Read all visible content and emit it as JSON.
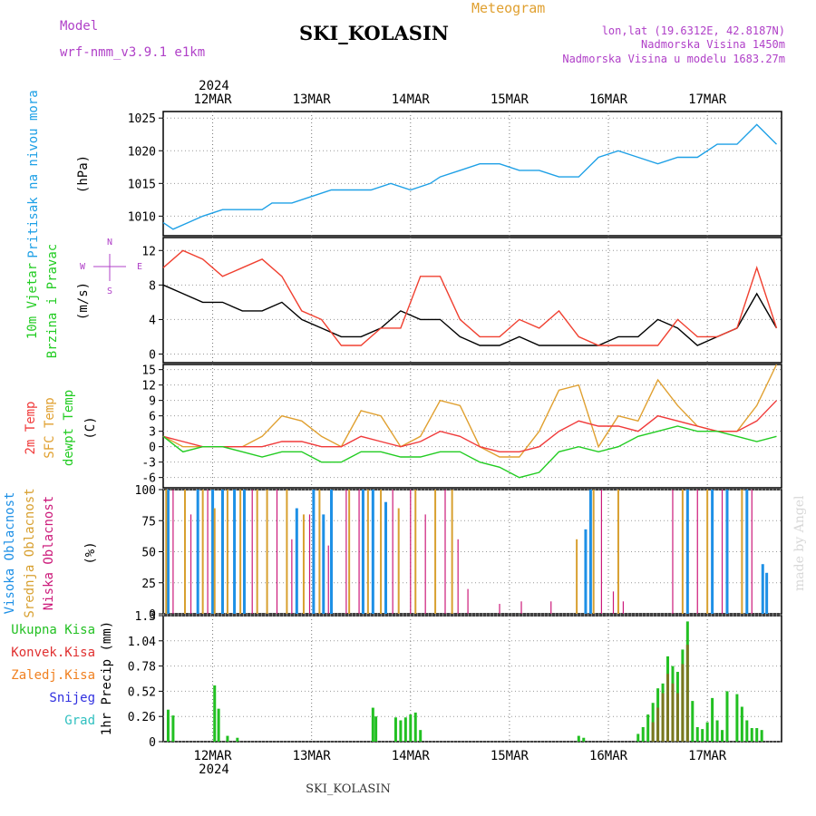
{
  "header": {
    "model_label": "Model",
    "model_name": "wrf-nmm_v3.9.1 e1km",
    "station": "SKI_KOLASIN",
    "product": "Meteogram",
    "lonlat": "lon,lat (19.6312E, 42.8187N)",
    "elevation": "Nadmorska Visina 1450m",
    "model_elevation": "Nadmorska Visina u modelu 1683.27m",
    "year_top": "2024",
    "year_bottom": "2024",
    "footer_station": "SKI_KOLASIN",
    "watermark": "made by Angel"
  },
  "dates": [
    "12MAR",
    "13MAR",
    "14MAR",
    "15MAR",
    "16MAR",
    "17MAR"
  ],
  "panel_labels": {
    "pressure": {
      "lines": [
        "Pritisak na nivou mora"
      ],
      "unit": "(hPa)"
    },
    "wind": {
      "lines": [
        "10m Vjetar",
        "Brzina i Pravac"
      ],
      "unit": "(m/s)",
      "compass": [
        "N",
        "W",
        "E",
        "S"
      ]
    },
    "temp": {
      "lines": [
        "2m Temp",
        "SFC Temp",
        "dewpt Temp"
      ],
      "unit": "(C)"
    },
    "cloud": {
      "lines": [
        "Visoka Oblacnost",
        "Srednja Oblacnost",
        "Niska Oblacnost"
      ],
      "unit": "(%)"
    },
    "precip": {
      "lines": [
        "Ukupna Kisa",
        "Konvek.Kisa",
        "Zaledj.Kisa",
        "Snijeg",
        "Grad"
      ],
      "unit": "1hr Precip (mm)"
    }
  },
  "colors": {
    "pressure": "#1ea0e6",
    "wind_speed": "#000000",
    "wind_gust": "#f04030",
    "temp_2m": "#f03a3a",
    "temp_sfc": "#e0a030",
    "temp_dewpt": "#22cc22",
    "cloud_high": "#1e90e6",
    "cloud_mid": "#d8a030",
    "cloud_low": "#cc1a7a",
    "precip_total": "#22c022",
    "precip_conv": "#e03030",
    "precip_frz": "#f08020",
    "precip_snow": "#3030e0",
    "precip_grad": "#30c0c0",
    "label_pressure": "#1ea0e6",
    "label_wind": "#22cc22",
    "label_purple": "#b040c8"
  },
  "chart_data": [
    {
      "type": "line",
      "name": "pressure",
      "x_unit": "days from 2024-03-11 12UTC",
      "ylabel": "(hPa)",
      "ylim": [
        1007,
        1026
      ],
      "yticks": [
        1010,
        1015,
        1020,
        1025
      ],
      "series": [
        {
          "x": [
            0,
            0.1,
            0.25,
            0.4,
            0.6,
            0.8,
            1.0,
            1.1,
            1.3,
            1.5,
            1.7,
            1.9,
            2.1,
            2.3,
            2.5,
            2.7,
            2.8,
            3.0,
            3.2,
            3.4,
            3.6,
            3.8,
            4.0,
            4.2,
            4.4,
            4.6,
            4.8,
            5.0,
            5.2,
            5.4,
            5.6,
            5.8,
            6.0,
            6.1,
            6.2
          ],
          "values": [
            1009,
            1008,
            1009,
            1010,
            1011,
            1011,
            1011,
            1012,
            1012,
            1013,
            1014,
            1014,
            1014,
            1015,
            1014,
            1015,
            1016,
            1017,
            1018,
            1018,
            1017,
            1017,
            1016,
            1016,
            1019,
            1020,
            1019,
            1018,
            1019,
            1019,
            1021,
            1021,
            1024,
            1022.5,
            1021
          ]
        }
      ]
    },
    {
      "type": "line",
      "name": "wind",
      "ylabel": "(m/s)",
      "ylim": [
        -1,
        13.5
      ],
      "yticks": [
        0,
        4,
        8,
        12
      ],
      "series": [
        {
          "x": [
            0,
            0.2,
            0.4,
            0.6,
            0.8,
            1.0,
            1.2,
            1.4,
            1.6,
            1.8,
            2.0,
            2.2,
            2.4,
            2.6,
            2.8,
            3.0,
            3.2,
            3.4,
            3.6,
            3.8,
            4.0,
            4.2,
            4.4,
            4.6,
            4.8,
            5.0,
            5.2,
            5.4,
            5.6,
            5.8,
            6.0,
            6.2
          ],
          "values": [
            8,
            7,
            6,
            6,
            5,
            5,
            6,
            4,
            3,
            2,
            2,
            3,
            5,
            4,
            4,
            2,
            1,
            1,
            2,
            1,
            1,
            1,
            1,
            2,
            2,
            4,
            3,
            1,
            2,
            3,
            7,
            3
          ]
        },
        {
          "x": [
            0,
            0.2,
            0.4,
            0.6,
            0.8,
            1.0,
            1.2,
            1.4,
            1.6,
            1.8,
            2.0,
            2.2,
            2.4,
            2.6,
            2.8,
            3.0,
            3.2,
            3.4,
            3.6,
            3.8,
            4.0,
            4.2,
            4.4,
            4.6,
            4.8,
            5.0,
            5.2,
            5.4,
            5.6,
            5.8,
            6.0,
            6.2
          ],
          "values": [
            10,
            12,
            11,
            9,
            10,
            11,
            9,
            5,
            4,
            1,
            1,
            3,
            3,
            9,
            9,
            4,
            2,
            2,
            4,
            3,
            5,
            2,
            1,
            1,
            1,
            1,
            4,
            2,
            2,
            3,
            10,
            3
          ]
        }
      ]
    },
    {
      "type": "line",
      "name": "temperature",
      "ylabel": "(C)",
      "ylim": [
        -8,
        16
      ],
      "yticks": [
        -6,
        -3,
        0,
        3,
        6,
        9,
        12,
        15
      ],
      "series": [
        {
          "x": [
            0,
            0.2,
            0.4,
            0.6,
            0.8,
            1.0,
            1.2,
            1.4,
            1.6,
            1.8,
            2.0,
            2.2,
            2.4,
            2.6,
            2.8,
            3.0,
            3.2,
            3.4,
            3.6,
            3.8,
            4.0,
            4.2,
            4.4,
            4.6,
            4.8,
            5.0,
            5.2,
            5.4,
            5.6,
            5.8,
            6.0,
            6.2
          ],
          "values": [
            2,
            1,
            0,
            0,
            0,
            0,
            1,
            1,
            0,
            0,
            2,
            1,
            0,
            1,
            3,
            2,
            0,
            -1,
            -1,
            0,
            3,
            5,
            4,
            4,
            3,
            6,
            5,
            4,
            3,
            3,
            5,
            9
          ]
        },
        {
          "x": [
            0,
            0.2,
            0.4,
            0.6,
            0.8,
            1.0,
            1.2,
            1.4,
            1.6,
            1.8,
            2.0,
            2.2,
            2.4,
            2.6,
            2.8,
            3.0,
            3.2,
            3.4,
            3.6,
            3.8,
            4.0,
            4.2,
            4.4,
            4.6,
            4.8,
            5.0,
            5.2,
            5.4,
            5.6,
            5.8,
            6.0,
            6.2
          ],
          "values": [
            2,
            0,
            0,
            0,
            0,
            2,
            6,
            5,
            2,
            0,
            7,
            6,
            0,
            2,
            9,
            8,
            0,
            -2,
            -2,
            3,
            11,
            12,
            0,
            6,
            5,
            13,
            8,
            4,
            3,
            3,
            8,
            16
          ]
        },
        {
          "x": [
            0,
            0.2,
            0.4,
            0.6,
            0.8,
            1.0,
            1.2,
            1.4,
            1.6,
            1.8,
            2.0,
            2.2,
            2.4,
            2.6,
            2.8,
            3.0,
            3.2,
            3.4,
            3.6,
            3.8,
            4.0,
            4.2,
            4.4,
            4.6,
            4.8,
            5.0,
            5.2,
            5.4,
            5.6,
            5.8,
            6.0,
            6.2
          ],
          "values": [
            2,
            -1,
            0,
            0,
            -1,
            -2,
            -1,
            -1,
            -3,
            -3,
            -1,
            -1,
            -2,
            -2,
            -1,
            -1,
            -3,
            -4,
            -6,
            -5,
            -1,
            0,
            -1,
            0,
            2,
            3,
            4,
            3,
            3,
            2,
            1,
            2
          ]
        }
      ]
    },
    {
      "type": "bar",
      "name": "cloud",
      "ylabel": "(%)",
      "ylim": [
        0,
        100
      ],
      "yticks": [
        0,
        25,
        50,
        75,
        100
      ],
      "series": [
        {
          "x": [
            0.05,
            0.35,
            0.5,
            0.6,
            0.72,
            0.82,
            1.35,
            1.52,
            1.62,
            1.7,
            2.02,
            2.12,
            2.25,
            4.27,
            4.32,
            5.3,
            5.55,
            5.7,
            5.9,
            6.06,
            6.1
          ],
          "values": [
            100,
            100,
            100,
            100,
            100,
            100,
            85,
            100,
            80,
            100,
            100,
            100,
            90,
            68,
            100,
            100,
            100,
            100,
            100,
            40,
            33
          ]
        },
        {
          "x": [
            0.03,
            0.22,
            0.4,
            0.52,
            0.65,
            0.78,
            0.95,
            1.05,
            1.25,
            1.42,
            1.58,
            1.88,
            2.07,
            2.2,
            2.38,
            2.55,
            2.75,
            2.92,
            4.18,
            4.35,
            4.6,
            5.25,
            5.5,
            5.85
          ],
          "values": [
            100,
            100,
            100,
            85,
            100,
            100,
            100,
            100,
            100,
            80,
            100,
            100,
            100,
            100,
            85,
            100,
            100,
            100,
            60,
            100,
            100,
            100,
            100,
            100
          ]
        },
        {
          "x": [
            0.1,
            0.28,
            0.45,
            0.9,
            1.15,
            1.3,
            1.48,
            1.67,
            1.85,
            1.98,
            2.32,
            2.5,
            2.65,
            2.85,
            2.98,
            3.08,
            3.4,
            3.62,
            3.92,
            4.43,
            4.55,
            4.65,
            5.15,
            5.4,
            5.65,
            5.95
          ],
          "values": [
            100,
            80,
            100,
            100,
            100,
            60,
            80,
            55,
            100,
            100,
            100,
            100,
            80,
            100,
            60,
            20,
            8,
            10,
            10,
            100,
            18,
            10,
            100,
            100,
            100,
            100
          ]
        }
      ]
    },
    {
      "type": "bar",
      "name": "precip",
      "ylabel": "1hr Precip (mm)",
      "ylim": [
        0,
        1.3
      ],
      "yticks": [
        0,
        0.26,
        0.52,
        0.78,
        1.04,
        1.3
      ],
      "series": [
        {
          "x": [
            0.05,
            0.1,
            0.52,
            0.56,
            0.65,
            0.75,
            2.12,
            2.15,
            2.35,
            2.4,
            2.45,
            2.5,
            2.55,
            2.6,
            4.2,
            4.25,
            4.8,
            4.85,
            4.9,
            4.95,
            5.0,
            5.05,
            5.1,
            5.15,
            5.2,
            5.25,
            5.3,
            5.35,
            5.4,
            5.45,
            5.5,
            5.55,
            5.6,
            5.65,
            5.7,
            5.8,
            5.85,
            5.9,
            5.95,
            6.0,
            6.05
          ],
          "values": [
            0.33,
            0.27,
            0.58,
            0.34,
            0.06,
            0.04,
            0.35,
            0.26,
            0.25,
            0.22,
            0.25,
            0.28,
            0.3,
            0.12,
            0.06,
            0.04,
            0.08,
            0.15,
            0.28,
            0.4,
            0.55,
            0.6,
            0.88,
            0.78,
            0.72,
            0.95,
            1.24,
            0.42,
            0.15,
            0.13,
            0.2,
            0.45,
            0.22,
            0.12,
            0.52,
            0.49,
            0.36,
            0.22,
            0.14,
            0.14,
            0.12
          ]
        },
        {
          "x": [
            4.95,
            5.0,
            5.05,
            5.1,
            5.15,
            5.2,
            5.25,
            5.3
          ],
          "values": [
            0.2,
            0.35,
            0.5,
            0.7,
            0.6,
            0.5,
            0.8,
            1.0
          ]
        }
      ]
    }
  ]
}
